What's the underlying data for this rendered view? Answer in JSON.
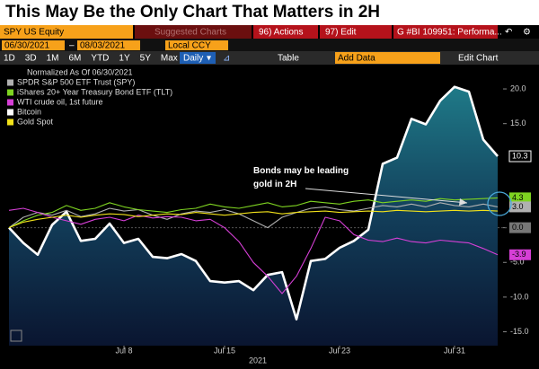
{
  "ui": {
    "headline": "This May Be the Only Chart That Matters in 2H",
    "ticker": "SPY US Equity",
    "suggested": "Suggested Charts",
    "actions": "96) Actions",
    "edit": "97) Edit",
    "report": "G #BI 109951: Performa...",
    "start_date": "06/30/2021",
    "end_date": "08/03/2021",
    "currency": "Local CCY",
    "periods": [
      "1D",
      "3D",
      "1M",
      "6M",
      "YTD",
      "1Y",
      "5Y",
      "Max"
    ],
    "frequency": "Daily",
    "table": "Table",
    "add_data": "Add Data",
    "edit_chart": "Edit Chart"
  },
  "chart_data": {
    "type": "line",
    "legend_title": "Normalized As Of 06/30/2021",
    "annotation": "Bonds may be leading gold in 2H",
    "xlabel": "2021",
    "x": [
      0,
      1,
      2,
      3,
      4,
      5,
      6,
      7,
      8,
      9,
      10,
      11,
      12,
      13,
      14,
      15,
      16,
      17,
      18,
      19,
      20,
      21,
      22,
      23,
      24,
      25,
      26,
      27,
      28,
      29,
      30,
      31,
      32,
      33,
      34
    ],
    "xlim": [
      0,
      34
    ],
    "xticks": [
      {
        "value": 8,
        "label": "Jul 8"
      },
      {
        "value": 15,
        "label": "Jul 15"
      },
      {
        "value": 23,
        "label": "Jul 23"
      },
      {
        "value": 31,
        "label": "Jul 31"
      }
    ],
    "ylim": [
      -17,
      23.5
    ],
    "yticks": [
      {
        "value": 20,
        "label": "20.0"
      },
      {
        "value": 15,
        "label": "15.0"
      },
      {
        "value": 0,
        "label": "0.0"
      },
      {
        "value": -5,
        "label": "-5.0"
      },
      {
        "value": -10,
        "label": "-10.0"
      },
      {
        "value": -15,
        "label": "-15.0"
      }
    ],
    "series": [
      {
        "name": "Bitcoin",
        "color": "#ffffff",
        "area": true,
        "values": [
          0,
          -2.2,
          -3.9,
          0.4,
          2.3,
          -1.9,
          -1.6,
          0.6,
          -2.2,
          -1.6,
          -4.2,
          -4.4,
          -3.8,
          -4.8,
          -7.7,
          -7.9,
          -7.7,
          -9.0,
          -6.8,
          -6.4,
          -13.2,
          -4.8,
          -4.5,
          -2.9,
          -1.9,
          -0.3,
          9.2,
          10.1,
          15.7,
          14.9,
          18.3,
          20.3,
          19.6,
          12.7,
          10.3
        ]
      },
      {
        "name": "SPDR S&P 500 ETF Trust (SPY)",
        "color": "#b0b0b0",
        "values": [
          0,
          1.5,
          2.2,
          1.8,
          2.5,
          1.6,
          2.0,
          2.8,
          2.4,
          2.6,
          1.8,
          1.2,
          2.0,
          2.4,
          2.2,
          2.6,
          2.0,
          1.0,
          0.0,
          1.5,
          2.2,
          2.8,
          3.0,
          2.6,
          2.4,
          2.8,
          3.2,
          3.0,
          3.4,
          3.0,
          3.6,
          3.2,
          3.0,
          3.4,
          3.0
        ],
        "value_labels": [
          null,
          null,
          null,
          null,
          null,
          null,
          null,
          null,
          null,
          null,
          null,
          null,
          null,
          null,
          null,
          null,
          null,
          null,
          null,
          null,
          null,
          null,
          null,
          null,
          null,
          null,
          null,
          null,
          null,
          null,
          null,
          null,
          null,
          null,
          "3.0"
        ]
      },
      {
        "name": "iShares 20+ Year Treasury Bond ETF (TLT)",
        "color": "#7ed321",
        "values": [
          0,
          1.0,
          1.8,
          2.2,
          3.2,
          2.5,
          2.8,
          3.6,
          3.0,
          2.6,
          2.4,
          2.2,
          2.6,
          2.8,
          3.4,
          3.0,
          2.8,
          3.2,
          3.6,
          3.0,
          3.2,
          3.8,
          3.6,
          3.4,
          3.8,
          4.0,
          3.6,
          3.8,
          4.0,
          3.8,
          4.2,
          4.0,
          4.1,
          4.2,
          4.3
        ]
      },
      {
        "name": "WTI crude oil, 1st future",
        "color": "#d63fd6",
        "values": [
          2.5,
          2.8,
          2.2,
          1.5,
          1.0,
          0.5,
          1.2,
          1.5,
          1.0,
          1.8,
          1.4,
          1.6,
          1.5,
          1.0,
          1.2,
          0.0,
          -2.0,
          -5.0,
          -7.0,
          -9.5,
          -7.0,
          -3.0,
          1.5,
          1.0,
          -1.0,
          -1.8,
          -2.0,
          -1.5,
          -2.0,
          -2.2,
          -1.8,
          -2.0,
          -2.2,
          -3.0,
          -3.9
        ]
      },
      {
        "name": "Gold Spot",
        "color": "#f2e21a",
        "values": [
          0,
          0.8,
          1.2,
          1.5,
          1.8,
          1.5,
          1.8,
          2.0,
          1.9,
          1.6,
          1.8,
          2.0,
          1.9,
          2.2,
          2.0,
          1.8,
          2.0,
          2.2,
          2.3,
          2.0,
          2.2,
          2.3,
          2.4,
          2.2,
          2.3,
          2.4,
          2.3,
          2.5,
          2.4,
          2.3,
          2.4,
          2.5,
          2.4,
          2.5,
          2.4
        ]
      }
    ],
    "legend_order": [
      1,
      2,
      3,
      0,
      4
    ],
    "end_labels": [
      0,
      2,
      1,
      3
    ]
  }
}
